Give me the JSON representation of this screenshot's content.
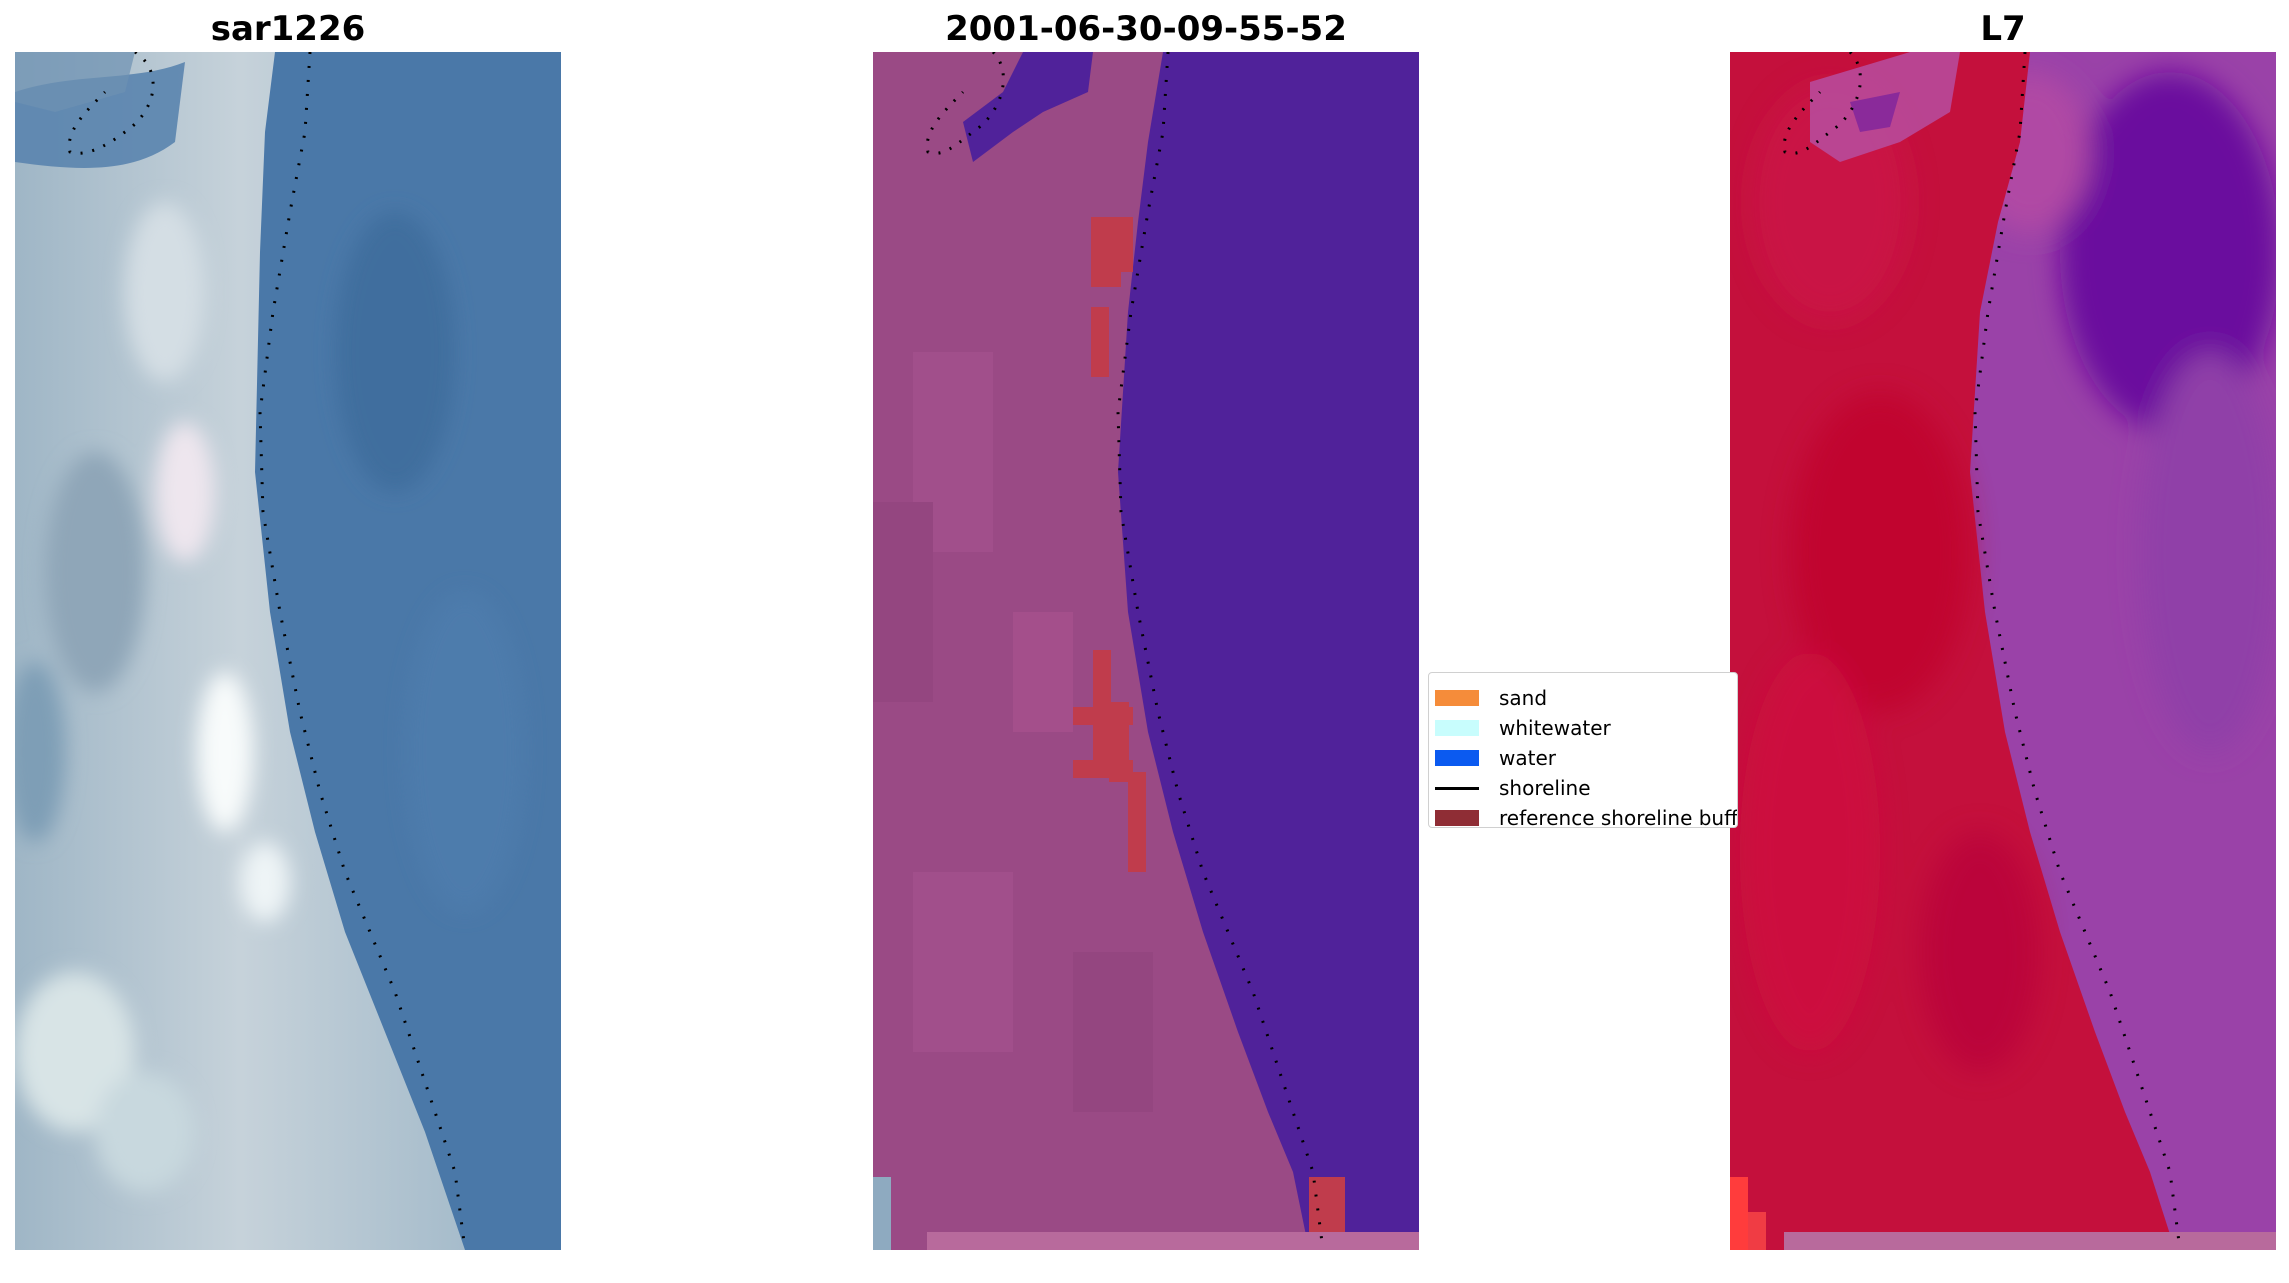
{
  "panels": [
    {
      "title": "sar1226",
      "type": "rgb-image"
    },
    {
      "title": "2001-06-30-09-55-52",
      "type": "classified-image"
    },
    {
      "title": "L7",
      "type": "false-color-image"
    }
  ],
  "legend": {
    "items": [
      {
        "label": "sand",
        "color": "#f58c3a"
      },
      {
        "label": "whitewater",
        "color": "#c8fdfd"
      },
      {
        "label": "water",
        "color": "#0b5af0"
      },
      {
        "label": "shoreline",
        "color": "#000000",
        "style": "line"
      },
      {
        "label": "reference shoreline buffer",
        "color": "#8f2d35"
      }
    ]
  },
  "colors": {
    "rgb_water": "#4a78a8",
    "rgb_land": "#b8c8d4",
    "rgb_bright": "#f4f7f7",
    "class_land": "#9a4a85",
    "class_water": "#50229a",
    "class_buffer": "#c03c4c",
    "fc_land": "#c4103c",
    "fc_water": "#8c3ca4",
    "fc_deep": "#6a109e",
    "shoreline": "#000000"
  }
}
